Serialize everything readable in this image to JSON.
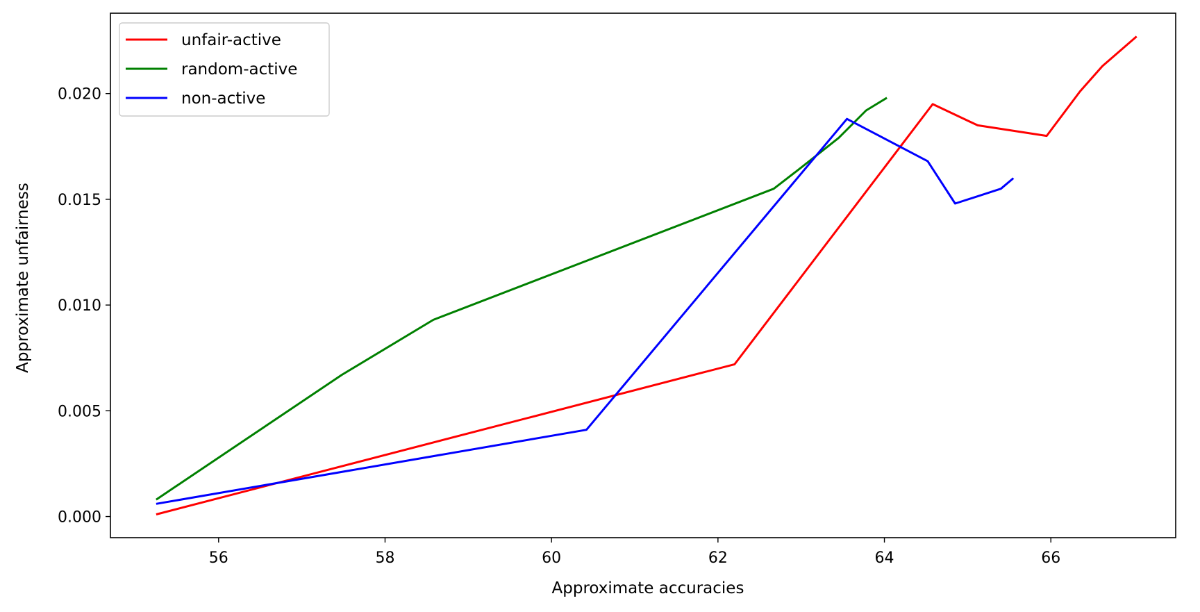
{
  "chart_data": {
    "type": "line",
    "title": "",
    "xlabel": "Approximate accuracies",
    "ylabel": "Approximate unfairness",
    "xlim": [
      54.7,
      67.5
    ],
    "ylim": [
      -0.001,
      0.0238
    ],
    "x_ticks": [
      56,
      58,
      60,
      62,
      64,
      66
    ],
    "x_tick_labels": [
      "56",
      "58",
      "60",
      "62",
      "64",
      "66"
    ],
    "y_ticks": [
      0.0,
      0.005,
      0.01,
      0.015,
      0.02
    ],
    "y_tick_labels": [
      "0.000",
      "0.005",
      "0.010",
      "0.015",
      "0.020"
    ],
    "grid": false,
    "legend_position": "top-left",
    "series": [
      {
        "name": "unfair-active",
        "color": "#ff0000",
        "x": [
          55.25,
          62.2,
          64.58,
          65.12,
          65.95,
          66.35,
          66.62,
          67.03
        ],
        "y": [
          0.0001,
          0.0072,
          0.0195,
          0.0185,
          0.018,
          0.0201,
          0.0213,
          0.0227
        ]
      },
      {
        "name": "random-active",
        "color": "#008000",
        "x": [
          55.25,
          57.48,
          58.58,
          62.67,
          63.0,
          63.45,
          63.78,
          64.03
        ],
        "y": [
          0.0008,
          0.0067,
          0.0093,
          0.0155,
          0.0165,
          0.0179,
          0.0192,
          0.0198
        ]
      },
      {
        "name": "non-active",
        "color": "#0000ff",
        "x": [
          55.25,
          60.42,
          63.55,
          64.52,
          64.85,
          65.4,
          65.55
        ],
        "y": [
          0.0006,
          0.0041,
          0.0188,
          0.0168,
          0.0148,
          0.0155,
          0.016
        ]
      }
    ]
  }
}
